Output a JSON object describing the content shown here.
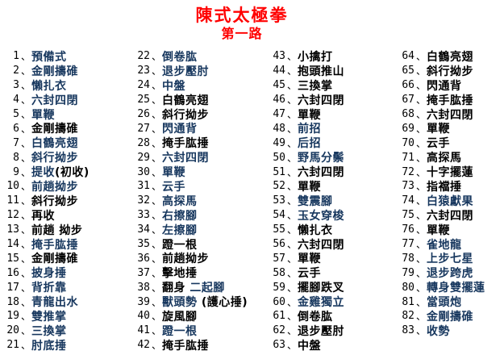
{
  "title": "陳式太極拳",
  "subtitle": "第一路",
  "colors": {
    "title_red": "#ff0000",
    "move_blue": "#17375E",
    "move_black": "#000000"
  },
  "separator": "、",
  "columns": [
    [
      {
        "num": "1",
        "parts": [
          {
            "t": "預備式",
            "c": "b"
          }
        ]
      },
      {
        "num": "2",
        "parts": [
          {
            "t": "金剛擣碓",
            "c": "b"
          }
        ]
      },
      {
        "num": "3",
        "parts": [
          {
            "t": "懶扎衣",
            "c": "b"
          }
        ]
      },
      {
        "num": "4",
        "parts": [
          {
            "t": "六封四閉",
            "c": "b"
          }
        ]
      },
      {
        "num": "5",
        "parts": [
          {
            "t": "單鞭",
            "c": "b"
          }
        ]
      },
      {
        "num": "6",
        "parts": [
          {
            "t": "金剛擣碓",
            "c": "k"
          }
        ]
      },
      {
        "num": "7",
        "parts": [
          {
            "t": "白鶴亮翅",
            "c": "b"
          }
        ]
      },
      {
        "num": "8",
        "parts": [
          {
            "t": "斜行拗步",
            "c": "b"
          }
        ]
      },
      {
        "num": "9",
        "parts": [
          {
            "t": "提收",
            "c": "b"
          },
          {
            "t": "(初收)",
            "c": "k"
          }
        ]
      },
      {
        "num": "10",
        "parts": [
          {
            "t": "前趟拗步",
            "c": "b"
          }
        ]
      },
      {
        "num": "11",
        "parts": [
          {
            "t": "斜行拗步",
            "c": "k"
          }
        ]
      },
      {
        "num": "12",
        "parts": [
          {
            "t": "再收",
            "c": "k"
          }
        ]
      },
      {
        "num": "13",
        "parts": [
          {
            "t": "前趟 拗步",
            "c": "k"
          }
        ]
      },
      {
        "num": "14",
        "parts": [
          {
            "t": "掩手肱捶",
            "c": "b"
          }
        ]
      },
      {
        "num": "15",
        "parts": [
          {
            "t": "金剛擣碓",
            "c": "k"
          }
        ]
      },
      {
        "num": "16",
        "parts": [
          {
            "t": "披身捶",
            "c": "b"
          }
        ]
      },
      {
        "num": "17",
        "parts": [
          {
            "t": "背折靠",
            "c": "b"
          }
        ]
      },
      {
        "num": "18",
        "parts": [
          {
            "t": "青龍出水",
            "c": "b"
          }
        ]
      },
      {
        "num": "19",
        "parts": [
          {
            "t": "雙推掌",
            "c": "b"
          }
        ]
      },
      {
        "num": "20",
        "parts": [
          {
            "t": "三換掌",
            "c": "b"
          }
        ]
      },
      {
        "num": "21",
        "parts": [
          {
            "t": "肘底捶",
            "c": "b"
          }
        ]
      }
    ],
    [
      {
        "num": "22",
        "parts": [
          {
            "t": "倒卷肱",
            "c": "b"
          }
        ]
      },
      {
        "num": "23",
        "parts": [
          {
            "t": "退步壓肘",
            "c": "b"
          }
        ]
      },
      {
        "num": "24",
        "parts": [
          {
            "t": "中盤",
            "c": "b"
          }
        ]
      },
      {
        "num": "25",
        "parts": [
          {
            "t": "白鶴亮翅",
            "c": "k"
          }
        ]
      },
      {
        "num": "26",
        "parts": [
          {
            "t": "斜行拗步",
            "c": "k"
          }
        ]
      },
      {
        "num": "27",
        "parts": [
          {
            "t": "閃通背",
            "c": "b"
          }
        ]
      },
      {
        "num": "28",
        "parts": [
          {
            "t": "掩手肱捶",
            "c": "k"
          }
        ]
      },
      {
        "num": "29",
        "parts": [
          {
            "t": "六封四閉",
            "c": "b"
          }
        ]
      },
      {
        "num": "30",
        "parts": [
          {
            "t": "單鞭",
            "c": "b"
          }
        ]
      },
      {
        "num": "31",
        "parts": [
          {
            "t": "云手",
            "c": "b"
          }
        ]
      },
      {
        "num": "32",
        "parts": [
          {
            "t": "高探馬",
            "c": "b"
          }
        ]
      },
      {
        "num": "33",
        "parts": [
          {
            "t": "右擦腳",
            "c": "b"
          }
        ]
      },
      {
        "num": "34",
        "parts": [
          {
            "t": "左擦腳",
            "c": "b"
          }
        ]
      },
      {
        "num": "35",
        "parts": [
          {
            "t": "蹬一根",
            "c": "k"
          }
        ]
      },
      {
        "num": "36",
        "parts": [
          {
            "t": "前趟拗步",
            "c": "k"
          }
        ]
      },
      {
        "num": "37",
        "parts": [
          {
            "t": "擊地捶",
            "c": "k"
          }
        ]
      },
      {
        "num": "38",
        "parts": [
          {
            "t": "翻身 ",
            "c": "k"
          },
          {
            "t": "二起腳",
            "c": "b"
          }
        ]
      },
      {
        "num": "39",
        "parts": [
          {
            "t": "獸頭勢",
            "c": "b"
          },
          {
            "t": " (護心捶)",
            "c": "k"
          }
        ]
      },
      {
        "num": "40",
        "parts": [
          {
            "t": "旋風腳",
            "c": "k"
          }
        ]
      },
      {
        "num": "41",
        "parts": [
          {
            "t": "蹬一根",
            "c": "b"
          }
        ]
      },
      {
        "num": "42",
        "parts": [
          {
            "t": "掩手肱捶",
            "c": "k"
          }
        ]
      }
    ],
    [
      {
        "num": "43",
        "parts": [
          {
            "t": "小擒打",
            "c": "k"
          }
        ]
      },
      {
        "num": "44",
        "parts": [
          {
            "t": "抱頭推山",
            "c": "k"
          }
        ]
      },
      {
        "num": "45",
        "parts": [
          {
            "t": "三換掌",
            "c": "k"
          }
        ]
      },
      {
        "num": "46",
        "parts": [
          {
            "t": "六封四閉",
            "c": "k"
          }
        ]
      },
      {
        "num": "47",
        "parts": [
          {
            "t": "單鞭",
            "c": "k"
          }
        ]
      },
      {
        "num": "48",
        "parts": [
          {
            "t": "前招",
            "c": "b"
          }
        ]
      },
      {
        "num": "49",
        "parts": [
          {
            "t": "后招",
            "c": "b"
          }
        ]
      },
      {
        "num": "50",
        "parts": [
          {
            "t": "野馬分鬃",
            "c": "b"
          }
        ]
      },
      {
        "num": "51",
        "parts": [
          {
            "t": "六封四閉",
            "c": "k"
          }
        ]
      },
      {
        "num": "52",
        "parts": [
          {
            "t": "單鞭",
            "c": "k"
          }
        ]
      },
      {
        "num": "53",
        "parts": [
          {
            "t": "雙震腳",
            "c": "b"
          }
        ]
      },
      {
        "num": "54",
        "parts": [
          {
            "t": "玉女穿梭",
            "c": "b"
          }
        ]
      },
      {
        "num": "55",
        "parts": [
          {
            "t": "懶扎衣",
            "c": "k"
          }
        ]
      },
      {
        "num": "56",
        "parts": [
          {
            "t": "六封四閉",
            "c": "k"
          }
        ]
      },
      {
        "num": "57",
        "parts": [
          {
            "t": "單鞭",
            "c": "k"
          }
        ]
      },
      {
        "num": "58",
        "parts": [
          {
            "t": "云手",
            "c": "k"
          }
        ]
      },
      {
        "num": "59",
        "parts": [
          {
            "t": "擺腳跌叉",
            "c": "k"
          }
        ]
      },
      {
        "num": "60",
        "parts": [
          {
            "t": "金雞獨立",
            "c": "b"
          }
        ]
      },
      {
        "num": "61",
        "parts": [
          {
            "t": "倒卷肱",
            "c": "k"
          }
        ]
      },
      {
        "num": "62",
        "parts": [
          {
            "t": "退步壓肘",
            "c": "k"
          }
        ]
      },
      {
        "num": "63",
        "parts": [
          {
            "t": "中盤",
            "c": "k"
          }
        ]
      }
    ],
    [
      {
        "num": "64",
        "parts": [
          {
            "t": "白鶴亮翅",
            "c": "k"
          }
        ]
      },
      {
        "num": "65",
        "parts": [
          {
            "t": "斜行拗步",
            "c": "k"
          }
        ]
      },
      {
        "num": "66",
        "parts": [
          {
            "t": "閃通背",
            "c": "k"
          }
        ]
      },
      {
        "num": "67",
        "parts": [
          {
            "t": "掩手肱捶",
            "c": "k"
          }
        ]
      },
      {
        "num": "68",
        "parts": [
          {
            "t": "六封四閉",
            "c": "k"
          }
        ]
      },
      {
        "num": "69",
        "parts": [
          {
            "t": "單鞭",
            "c": "k"
          }
        ]
      },
      {
        "num": "70",
        "parts": [
          {
            "t": "云手",
            "c": "k"
          }
        ]
      },
      {
        "num": "71",
        "parts": [
          {
            "t": "高探馬",
            "c": "k"
          }
        ]
      },
      {
        "num": "72",
        "parts": [
          {
            "t": "十字擺蓮",
            "c": "k"
          }
        ]
      },
      {
        "num": "73",
        "parts": [
          {
            "t": "指襠捶",
            "c": "k"
          }
        ]
      },
      {
        "num": "74",
        "parts": [
          {
            "t": "白猿獻果",
            "c": "b"
          }
        ]
      },
      {
        "num": "75",
        "parts": [
          {
            "t": "六封四閉",
            "c": "k"
          }
        ]
      },
      {
        "num": "76",
        "parts": [
          {
            "t": "單鞭",
            "c": "k"
          }
        ]
      },
      {
        "num": "77",
        "parts": [
          {
            "t": "雀地龍",
            "c": "b"
          }
        ]
      },
      {
        "num": "78",
        "parts": [
          {
            "t": "上步七星",
            "c": "b"
          }
        ]
      },
      {
        "num": "79",
        "parts": [
          {
            "t": "退步跨虎",
            "c": "b"
          }
        ]
      },
      {
        "num": "80",
        "parts": [
          {
            "t": "轉身雙擺蓮",
            "c": "b"
          }
        ]
      },
      {
        "num": "81",
        "parts": [
          {
            "t": "當頭炮",
            "c": "b"
          }
        ]
      },
      {
        "num": "82",
        "parts": [
          {
            "t": "金剛擣碓",
            "c": "b"
          }
        ]
      },
      {
        "num": "83",
        "parts": [
          {
            "t": "收勢",
            "c": "b"
          }
        ]
      }
    ]
  ]
}
